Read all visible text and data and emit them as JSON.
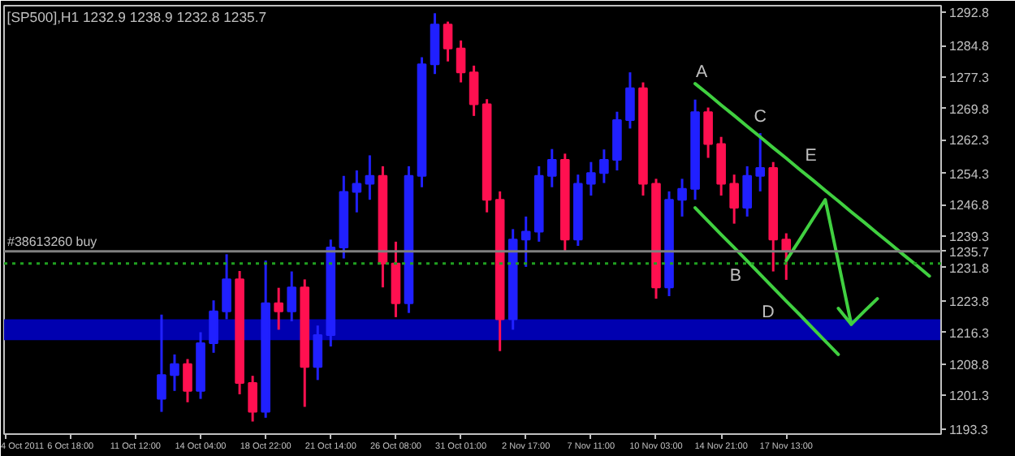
{
  "chart_data": {
    "type": "candlestick",
    "title": "[SP500],H1  1232.9 1238.9 1232.8 1235.7",
    "categories": [
      "4 Oct 2011",
      null,
      null,
      null,
      null,
      "6 Oct 18:00",
      null,
      null,
      null,
      null,
      "11 Oct 12:00",
      null,
      null,
      null,
      null,
      "14 Oct 04:00",
      null,
      null,
      null,
      null,
      "18 Oct 22:00",
      null,
      null,
      null,
      null,
      "21 Oct 14:00",
      null,
      null,
      null,
      null,
      "26 Oct 08:00",
      null,
      null,
      null,
      null,
      "31 Oct 01:00",
      null,
      null,
      null,
      null,
      "2 Nov 17:00",
      null,
      null,
      null,
      null,
      "7 Nov 11:00",
      null,
      null,
      null,
      null,
      "10 Nov 03:00",
      null,
      null,
      null,
      null,
      "14 Nov 21:00",
      null,
      null,
      null,
      null,
      "17 Nov 13:00",
      null,
      null,
      null,
      null,
      null,
      null,
      null,
      null,
      null,
      null,
      null
    ],
    "ohlc": [
      null,
      null,
      null,
      null,
      null,
      null,
      null,
      null,
      null,
      null,
      null,
      null,
      [
        1200.5,
        1220.6,
        1197.4,
        1206.2
      ],
      [
        1206.2,
        1211.1,
        1202.4,
        1208.8
      ],
      [
        1208.8,
        1210.0,
        1199.7,
        1202.4
      ],
      [
        1202.4,
        1216.4,
        1200.5,
        1213.8
      ],
      [
        1213.8,
        1224.0,
        1211.5,
        1221.4
      ],
      [
        1221.4,
        1235.0,
        1219.5,
        1229.0
      ],
      [
        1229.0,
        1231.0,
        1201.6,
        1204.3
      ],
      [
        1204.3,
        1206.0,
        1195.1,
        1197.4
      ],
      [
        1197.4,
        1233.5,
        1196.0,
        1223.3
      ],
      [
        1223.3,
        1227.0,
        1217.0,
        1221.4
      ],
      [
        1221.4,
        1230.9,
        1219.0,
        1227.1
      ],
      [
        1227.1,
        1229.0,
        1198.6,
        1208.1
      ],
      [
        1208.1,
        1218.0,
        1205.0,
        1215.7
      ],
      [
        1215.7,
        1238.5,
        1213.0,
        1236.6
      ],
      [
        1236.6,
        1253.7,
        1234.0,
        1249.9
      ],
      [
        1249.9,
        1255.0,
        1245.0,
        1251.8
      ],
      [
        1251.8,
        1258.6,
        1248.0,
        1253.7
      ],
      [
        1253.7,
        1256.0,
        1227.1,
        1232.8
      ],
      [
        1232.8,
        1238.0,
        1220.0,
        1223.3
      ],
      [
        1223.3,
        1256.0,
        1221.0,
        1253.7
      ],
      [
        1253.7,
        1282.0,
        1251.0,
        1280.3
      ],
      [
        1280.3,
        1292.5,
        1278.0,
        1289.8
      ],
      [
        1289.8,
        1290.5,
        1281.0,
        1284.1
      ],
      [
        1284.1,
        1286.0,
        1276.0,
        1278.4
      ],
      [
        1278.4,
        1280.0,
        1268.0,
        1270.8
      ],
      [
        1270.8,
        1272.0,
        1245.0,
        1248.0
      ],
      [
        1248.0,
        1250.0,
        1211.9,
        1219.5
      ],
      [
        1219.5,
        1241.0,
        1217.0,
        1238.5
      ],
      [
        1238.5,
        1244.0,
        1232.0,
        1240.4
      ],
      [
        1240.4,
        1256.0,
        1238.0,
        1253.7
      ],
      [
        1253.7,
        1260.1,
        1251.0,
        1257.5
      ],
      [
        1257.5,
        1259.0,
        1235.8,
        1238.5
      ],
      [
        1238.5,
        1254.0,
        1237.0,
        1251.8
      ],
      [
        1251.8,
        1257.0,
        1249.0,
        1254.4
      ],
      [
        1254.4,
        1260.0,
        1252.0,
        1257.5
      ],
      [
        1257.5,
        1269.0,
        1255.0,
        1267.0
      ],
      [
        1267.0,
        1278.4,
        1265.0,
        1274.6
      ],
      [
        1274.6,
        1276.0,
        1249.0,
        1251.8
      ],
      [
        1251.8,
        1253.0,
        1224.4,
        1227.1
      ],
      [
        1227.1,
        1250.0,
        1225.0,
        1248.0
      ],
      [
        1248.0,
        1253.0,
        1244.0,
        1250.6
      ],
      [
        1250.6,
        1271.9,
        1248.0,
        1268.9
      ],
      [
        1268.9,
        1270.0,
        1258.0,
        1261.3
      ],
      [
        1261.3,
        1263.0,
        1249.0,
        1251.8
      ],
      [
        1251.8,
        1254.0,
        1242.3,
        1246.1
      ],
      [
        1246.1,
        1256.0,
        1244.0,
        1253.7
      ],
      [
        1253.7,
        1263.9,
        1250.0,
        1255.6
      ],
      [
        1255.6,
        1257.0,
        1230.9,
        1238.5
      ],
      [
        1238.5,
        1240.0,
        1228.9,
        1235.7
      ],
      null,
      null,
      null,
      null,
      null,
      null,
      null,
      null,
      null,
      null,
      null
    ],
    "colors": [
      null,
      null,
      null,
      null,
      null,
      null,
      null,
      null,
      null,
      null,
      null,
      null,
      "#2020ff",
      "#2020ff",
      "#ff1050",
      "#2020ff",
      "#2020ff",
      "#2020ff",
      "#ff1050",
      "#ff1050",
      "#2020ff",
      "#ff1050",
      "#2020ff",
      "#ff1050",
      "#2020ff",
      "#2020ff",
      "#2020ff",
      "#2020ff",
      "#2020ff",
      "#ff1050",
      "#ff1050",
      "#2020ff",
      "#2020ff",
      "#2020ff",
      "#ff1050",
      "#ff1050",
      "#ff1050",
      "#ff1050",
      "#ff1050",
      "#2020ff",
      "#2020ff",
      "#2020ff",
      "#2020ff",
      "#ff1050",
      "#2020ff",
      "#2020ff",
      "#2020ff",
      "#2020ff",
      "#2020ff",
      "#ff1050",
      "#ff1050",
      "#2020ff",
      "#2020ff",
      "#2020ff",
      "#ff1050",
      "#ff1050",
      "#ff1050",
      "#2020ff",
      "#2020ff",
      "#ff1050",
      "#ff1050",
      null,
      null,
      null,
      null,
      null,
      null,
      null,
      null,
      null,
      null,
      null
    ],
    "series": [
      {
        "type": "line",
        "color": "#40d040",
        "values": [
          null,
          null,
          null,
          null,
          null,
          null,
          null,
          null,
          null,
          null,
          null,
          null,
          null,
          null,
          null,
          null,
          null,
          null,
          null,
          null,
          null,
          null,
          null,
          null,
          null,
          null,
          null,
          null,
          null,
          null,
          null,
          null,
          null,
          null,
          null,
          null,
          null,
          null,
          null,
          null,
          null,
          null,
          null,
          null,
          null,
          null,
          null,
          null,
          null,
          null,
          null,
          null,
          null,
          1275.7,
          1273.2,
          1270.6,
          1268.1,
          1265.5,
          1263.0,
          1260.4,
          1257.9,
          1255.3,
          1252.8,
          1250.2,
          1247.7,
          1245.1,
          1242.6,
          1240.0,
          1237.5,
          1234.9,
          1232.4,
          1229.8
        ]
      },
      {
        "type": "line",
        "color": "#40d040",
        "values": [
          null,
          null,
          null,
          null,
          null,
          null,
          null,
          null,
          null,
          null,
          null,
          null,
          null,
          null,
          null,
          null,
          null,
          null,
          null,
          null,
          null,
          null,
          null,
          null,
          null,
          null,
          null,
          null,
          null,
          null,
          null,
          null,
          null,
          null,
          null,
          null,
          null,
          null,
          null,
          null,
          null,
          null,
          null,
          null,
          null,
          null,
          null,
          null,
          null,
          null,
          null,
          null,
          null,
          1246.1,
          1242.9,
          1239.7,
          1236.6,
          1233.4,
          1230.2,
          1227.0,
          1223.8,
          1220.7,
          1217.5,
          1214.3,
          1211.1,
          null,
          null,
          null,
          null,
          null,
          null,
          null
        ]
      },
      {
        "type": "line",
        "color": "#40d040",
        "values": [
          null,
          null,
          null,
          null,
          null,
          null,
          null,
          null,
          null,
          null,
          null,
          null,
          null,
          null,
          null,
          null,
          null,
          null,
          null,
          null,
          null,
          null,
          null,
          null,
          null,
          null,
          null,
          null,
          null,
          null,
          null,
          null,
          null,
          null,
          null,
          null,
          null,
          null,
          null,
          null,
          null,
          null,
          null,
          null,
          null,
          null,
          null,
          null,
          null,
          null,
          null,
          null,
          null,
          null,
          null,
          null,
          null,
          null,
          null,
          null,
          1233.5,
          1238.3,
          1243.2,
          1248.0,
          1233.2,
          1218.3,
          1221.4,
          1224.4,
          null,
          null,
          null,
          null
        ]
      },
      {
        "type": "line",
        "color": "#40d040",
        "values": [
          null,
          null,
          null,
          null,
          null,
          null,
          null,
          null,
          null,
          null,
          null,
          null,
          null,
          null,
          null,
          null,
          null,
          null,
          null,
          null,
          null,
          null,
          null,
          null,
          null,
          null,
          null,
          null,
          null,
          null,
          null,
          null,
          null,
          null,
          null,
          null,
          null,
          null,
          null,
          null,
          null,
          null,
          null,
          null,
          null,
          null,
          null,
          null,
          null,
          null,
          null,
          null,
          null,
          null,
          null,
          null,
          null,
          null,
          null,
          null,
          null,
          null,
          null,
          null,
          1222.1,
          1218.3,
          null,
          null,
          null,
          null,
          null,
          null
        ]
      }
    ],
    "annotations": [
      "A",
      "C",
      "E",
      "B",
      "D"
    ],
    "ref_lines": [
      {
        "axis": "y",
        "value": 1235.7,
        "label": "1235.7",
        "color": "#808080",
        "line_style": "solid"
      },
      {
        "axis": "y",
        "value": 1232.8,
        "label": "#38613260 buy",
        "color": "#20a020",
        "line_style": "dotted"
      }
    ],
    "bands": [
      {
        "axis": "y",
        "from": 1214.5,
        "to": 1219.5,
        "color": "#0000b0"
      }
    ],
    "ylim": [
      1192.1,
      1294.3
    ],
    "yticks": [
      1292.8,
      1284.8,
      1277.3,
      1269.8,
      1262.3,
      1254.3,
      1246.8,
      1239.3,
      1231.8,
      1223.8,
      1216.3,
      1208.8,
      1201.3,
      1193.3
    ],
    "grid": false
  }
}
